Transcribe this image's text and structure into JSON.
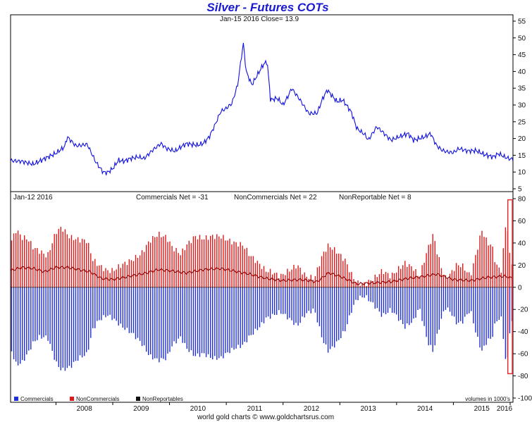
{
  "title": "Silver - Futures COTs",
  "colors": {
    "price": "#1010e0",
    "commercials": "#1f2fd6",
    "noncommercials": "#e01818",
    "nonreportables": "#101010",
    "net_line": "#8b0000",
    "highlight": "#e03030",
    "title": "#1a1ad0"
  },
  "footer": "world gold charts © www.goldchartsrus.com",
  "chart_data": [
    {
      "type": "line",
      "subtitle": "Jan-15  2016   Close= 13.9",
      "series_name": "Silver price",
      "ylim": [
        5,
        55
      ],
      "y_ticks": [
        "5",
        "10",
        "15",
        "20",
        "25",
        "30",
        "35",
        "40",
        "45",
        "50",
        "55"
      ],
      "x_range": [
        2007.2,
        2016.05
      ],
      "points": [
        [
          2007.2,
          13.4
        ],
        [
          2007.4,
          13.2
        ],
        [
          2007.6,
          12.3
        ],
        [
          2007.8,
          14.0
        ],
        [
          2008.0,
          15.6
        ],
        [
          2008.15,
          17.5
        ],
        [
          2008.2,
          20.5
        ],
        [
          2008.35,
          17.8
        ],
        [
          2008.45,
          18.0
        ],
        [
          2008.55,
          18.3
        ],
        [
          2008.7,
          13.0
        ],
        [
          2008.83,
          10.0
        ],
        [
          2008.9,
          9.8
        ],
        [
          2009.0,
          11.0
        ],
        [
          2009.1,
          13.5
        ],
        [
          2009.2,
          13.2
        ],
        [
          2009.3,
          14.0
        ],
        [
          2009.45,
          14.5
        ],
        [
          2009.55,
          14.0
        ],
        [
          2009.7,
          16.5
        ],
        [
          2009.85,
          18.5
        ],
        [
          2009.95,
          17.0
        ],
        [
          2010.1,
          16.2
        ],
        [
          2010.2,
          17.5
        ],
        [
          2010.3,
          18.5
        ],
        [
          2010.4,
          18.2
        ],
        [
          2010.5,
          18.0
        ],
        [
          2010.6,
          18.6
        ],
        [
          2010.7,
          20.5
        ],
        [
          2010.8,
          24.0
        ],
        [
          2010.9,
          28.0
        ],
        [
          2011.0,
          29.0
        ],
        [
          2011.1,
          30.5
        ],
        [
          2011.2,
          36.0
        ],
        [
          2011.3,
          48.5
        ],
        [
          2011.35,
          40.0
        ],
        [
          2011.45,
          36.0
        ],
        [
          2011.55,
          39.0
        ],
        [
          2011.65,
          42.0
        ],
        [
          2011.72,
          43.0
        ],
        [
          2011.78,
          31.5
        ],
        [
          2011.9,
          32.0
        ],
        [
          2012.0,
          30.0
        ],
        [
          2012.1,
          33.0
        ],
        [
          2012.15,
          35.0
        ],
        [
          2012.3,
          31.5
        ],
        [
          2012.45,
          27.5
        ],
        [
          2012.6,
          27.5
        ],
        [
          2012.7,
          32.0
        ],
        [
          2012.78,
          34.5
        ],
        [
          2012.85,
          33.0
        ],
        [
          2012.95,
          31.0
        ],
        [
          2013.05,
          31.5
        ],
        [
          2013.2,
          28.0
        ],
        [
          2013.3,
          23.0
        ],
        [
          2013.45,
          21.0
        ],
        [
          2013.5,
          19.5
        ],
        [
          2013.65,
          23.5
        ],
        [
          2013.75,
          22.0
        ],
        [
          2013.9,
          19.5
        ],
        [
          2014.0,
          20.2
        ],
        [
          2014.2,
          21.5
        ],
        [
          2014.3,
          19.5
        ],
        [
          2014.5,
          20.5
        ],
        [
          2014.6,
          21.5
        ],
        [
          2014.7,
          18.0
        ],
        [
          2014.8,
          16.5
        ],
        [
          2014.9,
          16.0
        ],
        [
          2015.0,
          15.8
        ],
        [
          2015.1,
          17.0
        ],
        [
          2015.25,
          16.3
        ],
        [
          2015.4,
          16.4
        ],
        [
          2015.55,
          15.2
        ],
        [
          2015.7,
          14.5
        ],
        [
          2015.8,
          15.5
        ],
        [
          2015.9,
          14.5
        ],
        [
          2016.0,
          13.9
        ],
        [
          2016.05,
          13.9
        ]
      ]
    },
    {
      "type": "bar",
      "subtitle_date": "Jan-12  2016",
      "summary": [
        "Commercials Net = -31",
        "NonCommercials Net = 22",
        "NonReportable Net = 8"
      ],
      "ylim": [
        -100,
        80
      ],
      "y_ticks": [
        "-100",
        "-80",
        "-60",
        "-40",
        "-20",
        "0",
        "20",
        "40",
        "60",
        "80"
      ],
      "x_range": [
        2007.2,
        2016.05
      ],
      "x_ticks": [
        "2008",
        "2009",
        "2010",
        "2011",
        "2012",
        "2013",
        "2014",
        "2015",
        "2016"
      ],
      "note": "volumes in 1000's",
      "legend": [
        "Commercials",
        "NonCommercials",
        "NonReportables"
      ],
      "series": [
        {
          "name": "NonCommercials",
          "envelope": [
            [
              2007.2,
              40
            ],
            [
              2007.3,
              52
            ],
            [
              2007.4,
              45
            ],
            [
              2007.5,
              44
            ],
            [
              2007.6,
              36
            ],
            [
              2007.7,
              33
            ],
            [
              2007.85,
              28
            ],
            [
              2008.0,
              50
            ],
            [
              2008.1,
              54
            ],
            [
              2008.25,
              45
            ],
            [
              2008.4,
              43
            ],
            [
              2008.55,
              42
            ],
            [
              2008.65,
              25
            ],
            [
              2008.75,
              20
            ],
            [
              2008.9,
              15
            ],
            [
              2009.0,
              15
            ],
            [
              2009.15,
              20
            ],
            [
              2009.35,
              25
            ],
            [
              2009.5,
              30
            ],
            [
              2009.65,
              42
            ],
            [
              2009.8,
              48
            ],
            [
              2009.95,
              45
            ],
            [
              2010.05,
              36
            ],
            [
              2010.2,
              30
            ],
            [
              2010.3,
              38
            ],
            [
              2010.45,
              46
            ],
            [
              2010.6,
              44
            ],
            [
              2010.75,
              46
            ],
            [
              2010.9,
              46
            ],
            [
              2011.05,
              42
            ],
            [
              2011.15,
              40
            ],
            [
              2011.3,
              38
            ],
            [
              2011.4,
              30
            ],
            [
              2011.5,
              25
            ],
            [
              2011.6,
              20
            ],
            [
              2011.7,
              15
            ],
            [
              2011.8,
              14
            ],
            [
              2011.95,
              10
            ],
            [
              2012.1,
              15
            ],
            [
              2012.25,
              20
            ],
            [
              2012.4,
              10
            ],
            [
              2012.55,
              8
            ],
            [
              2012.7,
              30
            ],
            [
              2012.8,
              38
            ],
            [
              2012.95,
              32
            ],
            [
              2013.1,
              24
            ],
            [
              2013.2,
              12
            ],
            [
              2013.3,
              4
            ],
            [
              2013.45,
              3
            ],
            [
              2013.6,
              8
            ],
            [
              2013.75,
              15
            ],
            [
              2013.9,
              10
            ],
            [
              2014.0,
              15
            ],
            [
              2014.15,
              22
            ],
            [
              2014.3,
              17
            ],
            [
              2014.4,
              9
            ],
            [
              2014.55,
              35
            ],
            [
              2014.65,
              48
            ],
            [
              2014.72,
              30
            ],
            [
              2014.85,
              8
            ],
            [
              2014.95,
              12
            ],
            [
              2015.05,
              20
            ],
            [
              2015.15,
              20
            ],
            [
              2015.3,
              10
            ],
            [
              2015.4,
              30
            ],
            [
              2015.5,
              52
            ],
            [
              2015.6,
              40
            ],
            [
              2015.68,
              38
            ],
            [
              2015.75,
              20
            ],
            [
              2015.85,
              15
            ],
            [
              2015.93,
              62
            ],
            [
              2015.97,
              46
            ],
            [
              2016.0,
              24
            ],
            [
              2016.05,
              22
            ]
          ]
        },
        {
          "name": "Commercials",
          "envelope": [
            [
              2007.2,
              -55
            ],
            [
              2007.3,
              -70
            ],
            [
              2007.4,
              -68
            ],
            [
              2007.5,
              -60
            ],
            [
              2007.6,
              -50
            ],
            [
              2007.7,
              -45
            ],
            [
              2007.85,
              -45
            ],
            [
              2008.0,
              -68
            ],
            [
              2008.1,
              -75
            ],
            [
              2008.25,
              -72
            ],
            [
              2008.4,
              -64
            ],
            [
              2008.55,
              -60
            ],
            [
              2008.65,
              -38
            ],
            [
              2008.75,
              -30
            ],
            [
              2008.9,
              -25
            ],
            [
              2009.0,
              -28
            ],
            [
              2009.15,
              -35
            ],
            [
              2009.35,
              -42
            ],
            [
              2009.5,
              -50
            ],
            [
              2009.65,
              -62
            ],
            [
              2009.8,
              -66
            ],
            [
              2009.95,
              -64
            ],
            [
              2010.05,
              -52
            ],
            [
              2010.2,
              -45
            ],
            [
              2010.3,
              -55
            ],
            [
              2010.45,
              -62
            ],
            [
              2010.6,
              -60
            ],
            [
              2010.75,
              -64
            ],
            [
              2010.9,
              -64
            ],
            [
              2011.05,
              -58
            ],
            [
              2011.15,
              -55
            ],
            [
              2011.3,
              -52
            ],
            [
              2011.4,
              -45
            ],
            [
              2011.5,
              -40
            ],
            [
              2011.6,
              -35
            ],
            [
              2011.7,
              -28
            ],
            [
              2011.8,
              -26
            ],
            [
              2011.95,
              -22
            ],
            [
              2012.1,
              -28
            ],
            [
              2012.25,
              -35
            ],
            [
              2012.4,
              -24
            ],
            [
              2012.55,
              -20
            ],
            [
              2012.7,
              -48
            ],
            [
              2012.8,
              -58
            ],
            [
              2012.95,
              -50
            ],
            [
              2013.1,
              -38
            ],
            [
              2013.2,
              -22
            ],
            [
              2013.3,
              -10
            ],
            [
              2013.45,
              -8
            ],
            [
              2013.6,
              -16
            ],
            [
              2013.75,
              -26
            ],
            [
              2013.9,
              -20
            ],
            [
              2014.0,
              -26
            ],
            [
              2014.15,
              -36
            ],
            [
              2014.3,
              -30
            ],
            [
              2014.4,
              -18
            ],
            [
              2014.55,
              -50
            ],
            [
              2014.65,
              -58
            ],
            [
              2014.72,
              -42
            ],
            [
              2014.85,
              -18
            ],
            [
              2014.95,
              -22
            ],
            [
              2015.05,
              -32
            ],
            [
              2015.15,
              -32
            ],
            [
              2015.3,
              -20
            ],
            [
              2015.4,
              -42
            ],
            [
              2015.5,
              -58
            ],
            [
              2015.6,
              -48
            ],
            [
              2015.68,
              -46
            ],
            [
              2015.75,
              -30
            ],
            [
              2015.85,
              -28
            ],
            [
              2015.93,
              -72
            ],
            [
              2015.97,
              -60
            ],
            [
              2016.0,
              -34
            ],
            [
              2016.05,
              -31
            ]
          ]
        },
        {
          "name": "Net line",
          "envelope": [
            [
              2007.2,
              15
            ],
            [
              2007.4,
              18
            ],
            [
              2007.6,
              17
            ],
            [
              2007.8,
              14
            ],
            [
              2008.0,
              18
            ],
            [
              2008.2,
              18
            ],
            [
              2008.4,
              16
            ],
            [
              2008.6,
              14
            ],
            [
              2008.8,
              8
            ],
            [
              2009.0,
              7
            ],
            [
              2009.3,
              10
            ],
            [
              2009.6,
              13
            ],
            [
              2009.8,
              16
            ],
            [
              2010.0,
              15
            ],
            [
              2010.3,
              13
            ],
            [
              2010.6,
              16
            ],
            [
              2010.9,
              17
            ],
            [
              2011.1,
              15
            ],
            [
              2011.4,
              12
            ],
            [
              2011.7,
              8
            ],
            [
              2012.0,
              6
            ],
            [
              2012.3,
              7
            ],
            [
              2012.6,
              5
            ],
            [
              2012.8,
              13
            ],
            [
              2013.0,
              10
            ],
            [
              2013.3,
              3
            ],
            [
              2013.6,
              4
            ],
            [
              2013.9,
              5
            ],
            [
              2014.2,
              8
            ],
            [
              2014.5,
              10
            ],
            [
              2014.7,
              12
            ],
            [
              2015.0,
              7
            ],
            [
              2015.3,
              6
            ],
            [
              2015.6,
              9
            ],
            [
              2015.9,
              10
            ],
            [
              2016.05,
              8
            ]
          ]
        }
      ],
      "highlight_range": [
        2015.96,
        2016.04
      ]
    }
  ]
}
